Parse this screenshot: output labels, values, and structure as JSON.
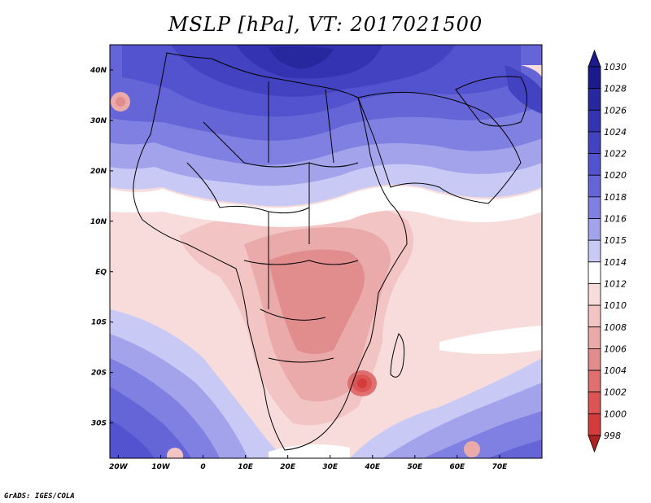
{
  "title": "MSLP [hPa], VT: 2017021500",
  "credit": "GrADS: IGES/COLA",
  "axes": {
    "lat_ticks": [
      "40N",
      "30N",
      "20N",
      "10N",
      "EQ",
      "10S",
      "20S",
      "30S"
    ],
    "lon_ticks": [
      "20W",
      "10W",
      "0",
      "10E",
      "20E",
      "30E",
      "40E",
      "50E",
      "60E",
      "70E"
    ]
  },
  "colorbar": {
    "levels": [
      "1030",
      "1028",
      "1026",
      "1024",
      "1022",
      "1020",
      "1018",
      "1016",
      "1015",
      "1014",
      "1012",
      "1010",
      "1008",
      "1006",
      "1004",
      "1002",
      "1000",
      "998"
    ],
    "colors": [
      "#1a1a8c",
      "#27279e",
      "#3434b2",
      "#4343c2",
      "#5353cf",
      "#6565d8",
      "#8080e2",
      "#a3a3ec",
      "#c9c9f5",
      "#ffffff",
      "#f8dcdc",
      "#f2c4c4",
      "#eaaaaa",
      "#e28d8d",
      "#e06f6f",
      "#dd5454",
      "#d43c3c",
      "#b02222"
    ]
  },
  "map_features": {
    "central_low_hpa": "~1000",
    "high_pressure_north": "~1028",
    "region": "Africa and Middle East"
  }
}
